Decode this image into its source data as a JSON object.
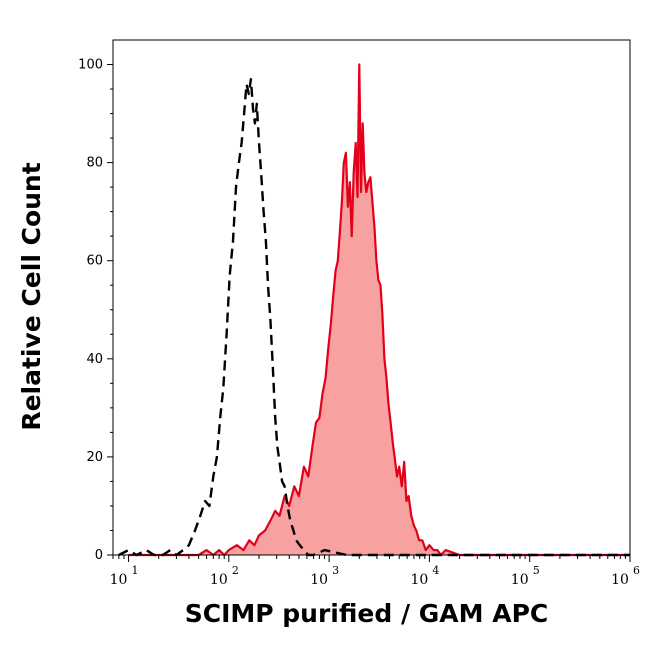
{
  "chart_data": {
    "type": "area",
    "xlabel": "SCIMP purified / GAM APC",
    "ylabel": "Relative Cell Count",
    "x_scale": "log",
    "xlim": [
      7,
      1000000
    ],
    "ylim": [
      0,
      105
    ],
    "yticks": [
      "0",
      "20",
      "40",
      "60",
      "80",
      "100"
    ],
    "xticks": [
      {
        "base": "10",
        "exp": "1"
      },
      {
        "base": "10",
        "exp": "2"
      },
      {
        "base": "10",
        "exp": "3"
      },
      {
        "base": "10",
        "exp": "4"
      },
      {
        "base": "10",
        "exp": "5"
      },
      {
        "base": "10",
        "exp": "6"
      }
    ],
    "grid": false,
    "colors": {
      "stained_line": "#e3001b",
      "stained_fill": "#f7a1a1",
      "control_line": "#000000"
    },
    "series": [
      {
        "style": "dashed-line",
        "x": [
          8,
          10,
          12,
          15,
          18,
          22,
          26,
          30,
          35,
          40,
          46,
          52,
          58,
          64,
          70,
          76,
          82,
          88,
          95,
          102,
          110,
          118,
          126,
          134,
          142,
          150,
          158,
          166,
          174,
          182,
          190,
          200,
          210,
          222,
          234,
          246,
          260,
          275,
          290,
          305,
          320,
          340,
          360,
          385,
          410,
          440,
          470,
          510,
          560,
          620,
          700,
          900,
          1500,
          3000,
          10000,
          100000,
          1000000
        ],
        "y": [
          0,
          1,
          0,
          1,
          0,
          0,
          1,
          0,
          1,
          2,
          5,
          8,
          11,
          10,
          16,
          20,
          28,
          34,
          45,
          57,
          64,
          75,
          80,
          84,
          90,
          96,
          94,
          97,
          91,
          88,
          92,
          84,
          78,
          70,
          64,
          55,
          48,
          38,
          28,
          22,
          19,
          15,
          14,
          10,
          7,
          5,
          3,
          2,
          1,
          0,
          0,
          1,
          0,
          0,
          0,
          0,
          0
        ]
      },
      {
        "style": "filled-area",
        "x": [
          10,
          30,
          50,
          60,
          70,
          80,
          90,
          100,
          120,
          140,
          160,
          180,
          200,
          230,
          260,
          290,
          320,
          360,
          400,
          450,
          500,
          560,
          620,
          680,
          740,
          800,
          860,
          920,
          980,
          1040,
          1100,
          1160,
          1220,
          1280,
          1340,
          1400,
          1470,
          1540,
          1610,
          1680,
          1760,
          1840,
          1920,
          2000,
          2080,
          2160,
          2250,
          2350,
          2460,
          2580,
          2700,
          2830,
          2960,
          3100,
          3250,
          3400,
          3560,
          3730,
          3900,
          4100,
          4300,
          4500,
          4750,
          5000,
          5300,
          5600,
          5900,
          6200,
          6600,
          7000,
          7400,
          7900,
          8500,
          9200,
          10000,
          11000,
          12000,
          13000,
          14500,
          20000,
          100000,
          1000000
        ],
        "y": [
          0,
          0,
          0,
          1,
          0,
          1,
          0,
          1,
          2,
          1,
          3,
          2,
          4,
          5,
          7,
          9,
          8,
          12,
          10,
          14,
          12,
          18,
          16,
          22,
          27,
          28,
          33,
          36,
          42,
          47,
          53,
          58,
          60,
          66,
          72,
          80,
          82,
          71,
          76,
          65,
          78,
          84,
          73,
          100,
          74,
          88,
          78,
          74,
          76,
          77,
          72,
          67,
          60,
          56,
          55,
          49,
          40,
          36,
          31,
          27,
          23,
          20,
          16,
          18,
          14,
          19,
          11,
          12,
          8,
          6,
          5,
          3,
          3,
          1,
          2,
          1,
          1,
          0,
          1,
          0,
          0,
          0
        ]
      }
    ]
  }
}
